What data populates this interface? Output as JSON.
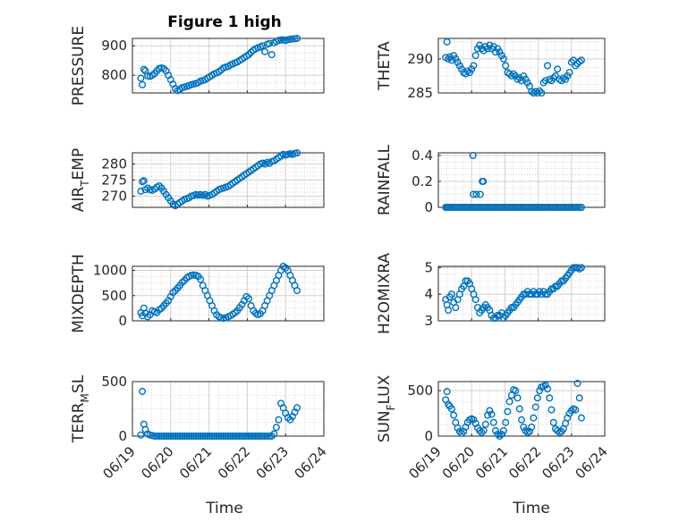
{
  "figure": {
    "title": "Figure 1 high"
  },
  "style": {
    "marker_color": "#0072BD",
    "axis_color": "#262626",
    "grid_color": "#d0d0d0"
  },
  "x_ticks": [
    "06/19",
    "06/20",
    "06/21",
    "06/22",
    "06/23",
    "06/24"
  ],
  "chart_data": [
    {
      "type": "scatter",
      "ylabel": "PRESSURE",
      "yticks": [
        800,
        900
      ],
      "ylim": [
        740,
        925
      ],
      "x": [
        0.22,
        0.26,
        0.3,
        0.34,
        0.4,
        0.46,
        0.52,
        0.58,
        0.64,
        0.7,
        0.76,
        0.82,
        0.88,
        0.94,
        1.0,
        1.06,
        1.12,
        1.18,
        1.24,
        1.3,
        1.36,
        1.42,
        1.48,
        1.54,
        1.6,
        1.66,
        1.72,
        1.78,
        1.84,
        1.9,
        1.96,
        2.02,
        2.08,
        2.14,
        2.2,
        2.26,
        2.32,
        2.38,
        2.44,
        2.5,
        2.56,
        2.62,
        2.68,
        2.74,
        2.8,
        2.86,
        2.92,
        2.98,
        3.04,
        3.1,
        3.16,
        3.22,
        3.28,
        3.34,
        3.4,
        3.46,
        3.52,
        3.58,
        3.64,
        3.7,
        3.76,
        3.82,
        3.88,
        3.94,
        4.0,
        4.06,
        4.12,
        4.18,
        4.24,
        4.3
      ],
      "y": [
        790,
        768,
        820,
        815,
        798,
        796,
        800,
        806,
        815,
        823,
        825,
        822,
        815,
        800,
        785,
        770,
        755,
        748,
        752,
        758,
        760,
        762,
        765,
        768,
        770,
        772,
        775,
        780,
        782,
        785,
        790,
        795,
        800,
        805,
        808,
        812,
        818,
        825,
        828,
        830,
        835,
        838,
        842,
        845,
        850,
        855,
        860,
        865,
        870,
        878,
        885,
        890,
        893,
        896,
        900,
        880,
        905,
        908,
        870,
        910,
        915,
        918,
        920,
        920,
        918,
        921,
        922,
        923,
        924,
        925
      ]
    },
    {
      "type": "scatter",
      "ylabel": "THETA",
      "yticks": [
        285,
        290
      ],
      "ylim": [
        285,
        293
      ],
      "x": [
        0.22,
        0.26,
        0.3,
        0.34,
        0.4,
        0.46,
        0.52,
        0.58,
        0.64,
        0.7,
        0.76,
        0.82,
        0.88,
        0.94,
        1.0,
        1.06,
        1.12,
        1.18,
        1.24,
        1.3,
        1.36,
        1.42,
        1.48,
        1.54,
        1.6,
        1.66,
        1.72,
        1.78,
        1.84,
        1.9,
        1.96,
        2.02,
        2.08,
        2.14,
        2.2,
        2.26,
        2.32,
        2.38,
        2.44,
        2.5,
        2.56,
        2.62,
        2.68,
        2.74,
        2.8,
        2.86,
        2.92,
        2.98,
        3.04,
        3.1,
        3.16,
        3.22,
        3.28,
        3.34,
        3.4,
        3.46,
        3.52,
        3.58,
        3.64,
        3.7,
        3.76,
        3.82,
        3.88,
        3.94,
        4.0,
        4.06,
        4.12,
        4.18,
        4.24,
        4.3
      ],
      "y": [
        290.2,
        292.5,
        290.0,
        290.3,
        289.8,
        290.5,
        290.0,
        289.5,
        289.0,
        288.5,
        288.0,
        287.8,
        288.2,
        288.0,
        288.5,
        289.0,
        290.5,
        291.5,
        292.0,
        291.5,
        291.2,
        291.8,
        291.5,
        292.0,
        291.5,
        291.8,
        291.0,
        291.5,
        291.0,
        290.5,
        290.0,
        289.0,
        288.0,
        287.8,
        287.5,
        287.8,
        287.5,
        287.0,
        287.2,
        286.8,
        287.5,
        287.0,
        286.5,
        286.0,
        285.2,
        285.0,
        285.2,
        285.0,
        285.3,
        285.0,
        286.5,
        286.8,
        289.0,
        287.0,
        286.8,
        287.2,
        287.5,
        288.5,
        287.0,
        286.8,
        287.2,
        287.0,
        287.5,
        288.0,
        289.5,
        289.8,
        289.0,
        289.3,
        289.6,
        289.8
      ]
    },
    {
      "type": "scatter",
      "ylabel": "AIR_TEMP",
      "yticks": [
        270,
        275,
        280
      ],
      "ylim": [
        266.5,
        283.5
      ],
      "x": [
        0.22,
        0.26,
        0.3,
        0.34,
        0.4,
        0.46,
        0.52,
        0.58,
        0.64,
        0.7,
        0.76,
        0.82,
        0.88,
        0.94,
        1.0,
        1.06,
        1.12,
        1.18,
        1.24,
        1.3,
        1.36,
        1.42,
        1.48,
        1.54,
        1.6,
        1.66,
        1.72,
        1.78,
        1.84,
        1.9,
        1.96,
        2.02,
        2.08,
        2.14,
        2.2,
        2.26,
        2.32,
        2.38,
        2.44,
        2.5,
        2.56,
        2.62,
        2.68,
        2.74,
        2.8,
        2.86,
        2.92,
        2.98,
        3.04,
        3.1,
        3.16,
        3.22,
        3.28,
        3.34,
        3.4,
        3.46,
        3.52,
        3.58,
        3.64,
        3.7,
        3.76,
        3.82,
        3.88,
        3.94,
        4.0,
        4.06,
        4.12,
        4.18,
        4.24,
        4.3
      ],
      "y": [
        271.5,
        274.5,
        274.8,
        272.0,
        272.5,
        272.0,
        271.8,
        272.2,
        272.8,
        273.2,
        272.5,
        271.5,
        270.5,
        269.5,
        268.5,
        267.5,
        267.0,
        267.5,
        268.0,
        268.5,
        269.0,
        269.2,
        269.5,
        270.0,
        270.2,
        270.5,
        270.3,
        270.5,
        270.2,
        270.5,
        270.0,
        270.2,
        270.5,
        271.0,
        271.5,
        272.0,
        272.3,
        272.5,
        272.8,
        273.0,
        273.5,
        274.0,
        274.5,
        275.0,
        275.5,
        276.0,
        276.5,
        277.0,
        277.5,
        278.0,
        278.5,
        279.0,
        279.5,
        280.0,
        280.3,
        280.0,
        280.5,
        280.2,
        280.8,
        281.0,
        281.5,
        282.0,
        282.5,
        283.0,
        282.8,
        283.0,
        283.2,
        283.0,
        283.3,
        283.5
      ]
    },
    {
      "type": "scatter",
      "ylabel": "RAINFALL",
      "yticks": [
        0,
        0.2,
        0.4
      ],
      "ylim": [
        0,
        0.42
      ],
      "x": [
        0.22,
        0.26,
        0.3,
        0.34,
        0.4,
        0.46,
        0.52,
        0.58,
        0.64,
        0.7,
        0.76,
        0.82,
        0.88,
        0.94,
        1.0,
        1.06,
        1.12,
        1.18,
        1.24,
        1.3,
        1.36,
        1.42,
        1.48,
        1.54,
        1.6,
        1.66,
        1.72,
        1.78,
        1.84,
        1.9,
        1.96,
        2.02,
        2.08,
        2.14,
        2.2,
        2.26,
        2.32,
        2.38,
        2.44,
        2.5,
        2.56,
        2.62,
        2.68,
        2.74,
        2.8,
        2.86,
        2.92,
        2.98,
        3.04,
        3.1,
        3.16,
        3.22,
        3.28,
        3.34,
        3.4,
        3.46,
        3.52,
        3.58,
        3.64,
        3.7,
        3.76,
        3.82,
        3.88,
        3.94,
        4.0,
        4.06,
        4.12,
        4.18,
        4.24,
        4.3
      ],
      "y": [
        0,
        0,
        0,
        0,
        0,
        0,
        0,
        0,
        0,
        0,
        0,
        0,
        0,
        0,
        0,
        0,
        0,
        0,
        0,
        0,
        0,
        0,
        0,
        0,
        0,
        0,
        0,
        0,
        0,
        0,
        0,
        0,
        0,
        0,
        0,
        0,
        0,
        0,
        0,
        0,
        0,
        0,
        0,
        0,
        0,
        0,
        0,
        0,
        0,
        0,
        0,
        0,
        0,
        0,
        0,
        0,
        0,
        0,
        0,
        0,
        0,
        0,
        0,
        0,
        0,
        0,
        0,
        0,
        0,
        0
      ],
      "extra_x": [
        1.04,
        1.05,
        1.14,
        1.26,
        1.32,
        1.35
      ],
      "extra_y": [
        0.4,
        0.1,
        0.1,
        0.1,
        0.2,
        0.2
      ]
    },
    {
      "type": "scatter",
      "ylabel": "MIXDEPTH",
      "yticks": [
        0,
        500,
        1000
      ],
      "ylim": [
        0,
        1080
      ],
      "x": [
        0.22,
        0.26,
        0.3,
        0.34,
        0.4,
        0.46,
        0.52,
        0.58,
        0.64,
        0.7,
        0.76,
        0.82,
        0.88,
        0.94,
        1.0,
        1.06,
        1.12,
        1.18,
        1.24,
        1.3,
        1.36,
        1.42,
        1.48,
        1.54,
        1.6,
        1.66,
        1.72,
        1.78,
        1.84,
        1.9,
        1.96,
        2.02,
        2.08,
        2.14,
        2.2,
        2.26,
        2.32,
        2.38,
        2.44,
        2.5,
        2.56,
        2.62,
        2.68,
        2.74,
        2.8,
        2.86,
        2.92,
        2.98,
        3.04,
        3.1,
        3.16,
        3.22,
        3.28,
        3.34,
        3.4,
        3.46,
        3.52,
        3.58,
        3.64,
        3.7,
        3.76,
        3.82,
        3.88,
        3.94,
        4.0,
        4.06,
        4.12,
        4.18,
        4.24,
        4.3
      ],
      "y": [
        160,
        100,
        250,
        150,
        80,
        120,
        200,
        180,
        160,
        220,
        250,
        300,
        350,
        400,
        480,
        560,
        600,
        650,
        700,
        760,
        800,
        850,
        880,
        900,
        910,
        900,
        880,
        820,
        700,
        600,
        500,
        400,
        300,
        200,
        120,
        80,
        60,
        50,
        60,
        80,
        100,
        130,
        160,
        200,
        260,
        320,
        400,
        480,
        440,
        300,
        200,
        150,
        120,
        140,
        200,
        300,
        400,
        500,
        600,
        700,
        800,
        900,
        1000,
        1080,
        1050,
        1000,
        900,
        800,
        700,
        600
      ]
    },
    {
      "type": "scatter",
      "ylabel": "H2OMIXRA",
      "yticks": [
        3,
        4,
        5
      ],
      "ylim": [
        3,
        5.05
      ],
      "x": [
        0.22,
        0.26,
        0.3,
        0.34,
        0.4,
        0.46,
        0.52,
        0.58,
        0.64,
        0.7,
        0.76,
        0.82,
        0.88,
        0.94,
        1.0,
        1.06,
        1.12,
        1.18,
        1.24,
        1.3,
        1.36,
        1.42,
        1.48,
        1.54,
        1.6,
        1.66,
        1.72,
        1.78,
        1.84,
        1.9,
        1.96,
        2.02,
        2.08,
        2.14,
        2.2,
        2.26,
        2.32,
        2.38,
        2.44,
        2.5,
        2.56,
        2.62,
        2.68,
        2.74,
        2.8,
        2.86,
        2.92,
        2.98,
        3.04,
        3.1,
        3.16,
        3.22,
        3.28,
        3.34,
        3.4,
        3.46,
        3.52,
        3.58,
        3.64,
        3.7,
        3.76,
        3.82,
        3.88,
        3.94,
        4.0,
        4.06,
        4.12,
        4.18,
        4.24,
        4.3
      ],
      "y": [
        3.8,
        3.6,
        3.4,
        3.9,
        4.0,
        3.7,
        3.5,
        3.8,
        4.0,
        4.2,
        4.3,
        4.5,
        4.5,
        4.4,
        4.2,
        4.0,
        3.8,
        3.5,
        3.3,
        3.4,
        3.5,
        3.6,
        3.5,
        3.4,
        3.2,
        3.1,
        3.1,
        3.2,
        3.2,
        3.3,
        3.1,
        3.2,
        3.3,
        3.4,
        3.5,
        3.5,
        3.6,
        3.7,
        3.8,
        3.9,
        4.0,
        4.0,
        4.1,
        4.0,
        4.0,
        4.1,
        4.0,
        4.0,
        4.1,
        4.0,
        4.1,
        4.0,
        4.0,
        4.1,
        4.2,
        4.2,
        4.3,
        4.3,
        4.4,
        4.5,
        4.5,
        4.6,
        4.7,
        4.8,
        4.9,
        5.0,
        5.0,
        5.0,
        4.95,
        5.0
      ]
    },
    {
      "type": "scatter",
      "ylabel": "TERR_MSL",
      "yticks": [
        0,
        500
      ],
      "ylim": [
        0,
        500
      ],
      "x": [
        0.22,
        0.26,
        0.3,
        0.34,
        0.4,
        0.46,
        0.52,
        0.58,
        0.64,
        0.7,
        0.76,
        0.82,
        0.88,
        0.94,
        1.0,
        1.06,
        1.12,
        1.18,
        1.24,
        1.3,
        1.36,
        1.42,
        1.48,
        1.54,
        1.6,
        1.66,
        1.72,
        1.78,
        1.84,
        1.9,
        1.96,
        2.02,
        2.08,
        2.14,
        2.2,
        2.26,
        2.32,
        2.38,
        2.44,
        2.5,
        2.56,
        2.62,
        2.68,
        2.74,
        2.8,
        2.86,
        2.92,
        2.98,
        3.04,
        3.1,
        3.16,
        3.22,
        3.28,
        3.34,
        3.4,
        3.46,
        3.52,
        3.58,
        3.64,
        3.7,
        3.76,
        3.82,
        3.88,
        3.94,
        4.0,
        4.06,
        4.12,
        4.18,
        4.24,
        4.3
      ],
      "y": [
        10,
        410,
        110,
        60,
        20,
        10,
        5,
        0,
        0,
        0,
        0,
        0,
        0,
        0,
        0,
        0,
        0,
        0,
        0,
        0,
        0,
        0,
        0,
        0,
        0,
        0,
        0,
        0,
        0,
        0,
        0,
        0,
        0,
        0,
        0,
        0,
        0,
        0,
        0,
        0,
        0,
        0,
        0,
        0,
        0,
        0,
        0,
        0,
        0,
        0,
        0,
        0,
        0,
        0,
        0,
        0,
        0,
        0,
        0,
        20,
        80,
        150,
        300,
        260,
        210,
        170,
        150,
        180,
        220,
        260
      ]
    },
    {
      "type": "scatter",
      "ylabel": "SUN_FLUX",
      "yticks": [
        0,
        500
      ],
      "ylim": [
        0,
        600
      ],
      "x": [
        0.22,
        0.26,
        0.3,
        0.34,
        0.4,
        0.46,
        0.52,
        0.58,
        0.64,
        0.7,
        0.76,
        0.82,
        0.88,
        0.94,
        1.0,
        1.06,
        1.12,
        1.18,
        1.24,
        1.3,
        1.36,
        1.42,
        1.48,
        1.54,
        1.6,
        1.66,
        1.72,
        1.78,
        1.84,
        1.9,
        1.96,
        2.02,
        2.08,
        2.14,
        2.2,
        2.26,
        2.32,
        2.38,
        2.44,
        2.5,
        2.56,
        2.62,
        2.68,
        2.74,
        2.8,
        2.86,
        2.92,
        2.98,
        3.04,
        3.1,
        3.16,
        3.22,
        3.28,
        3.34,
        3.4,
        3.46,
        3.52,
        3.58,
        3.64,
        3.7,
        3.76,
        3.82,
        3.88,
        3.94,
        4.0,
        4.06,
        4.12,
        4.18,
        4.24,
        4.3
      ],
      "y": [
        400,
        490,
        350,
        330,
        300,
        230,
        150,
        90,
        50,
        30,
        50,
        100,
        150,
        180,
        190,
        180,
        140,
        90,
        60,
        40,
        60,
        130,
        230,
        280,
        240,
        150,
        60,
        20,
        0,
        20,
        60,
        150,
        270,
        380,
        450,
        510,
        500,
        420,
        300,
        180,
        100,
        60,
        40,
        50,
        100,
        200,
        320,
        420,
        500,
        540,
        550,
        560,
        520,
        420,
        290,
        150,
        80,
        60,
        40,
        50,
        80,
        140,
        200,
        250,
        280,
        300,
        290,
        580,
        420,
        200
      ]
    }
  ]
}
